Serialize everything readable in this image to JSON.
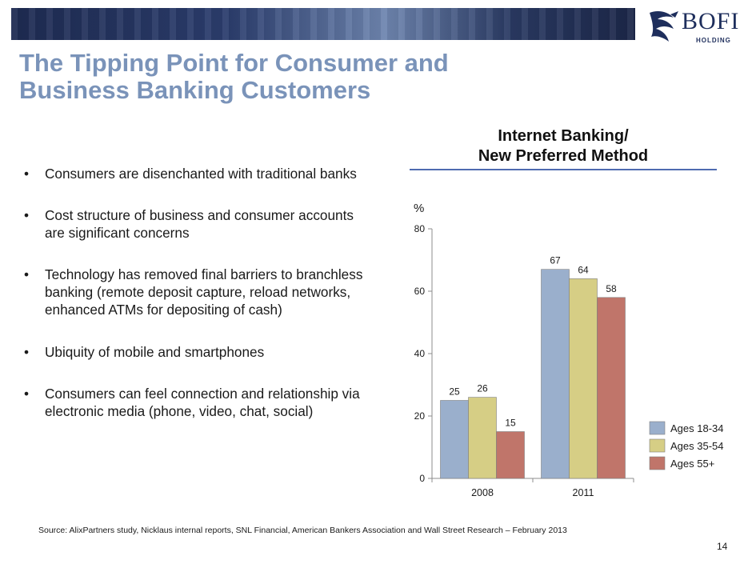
{
  "header": {
    "logo_text": "BOFI",
    "logo_subtext": "HOLDING"
  },
  "title": {
    "line1": "The Tipping Point for Consumer and",
    "line2": "Business Banking Customers"
  },
  "bullets": [
    "Consumers are disenchanted with traditional banks",
    "Cost structure of business and consumer accounts are significant concerns",
    "Technology has removed final barriers to branchless banking (remote deposit capture, reload networks, enhanced ATMs for depositing of cash)",
    "Ubiquity of mobile and smartphones",
    "Consumers can feel connection and relationship via electronic media (phone, video, chat, social)"
  ],
  "chart_heading": {
    "line1": "Internet Banking/",
    "line2": "New Preferred Method"
  },
  "chart_data": {
    "type": "bar",
    "title": "",
    "ylabel": "%",
    "xlabel": "",
    "categories": [
      "2008",
      "2011"
    ],
    "series": [
      {
        "name": "Ages 18-34",
        "values": [
          25,
          67
        ],
        "color": "#9aafcc"
      },
      {
        "name": "Ages 35-54",
        "values": [
          26,
          64
        ],
        "color": "#d6ce85"
      },
      {
        "name": "Ages 55+",
        "values": [
          15,
          58
        ],
        "color": "#c0756a"
      }
    ],
    "ylim": [
      0,
      80
    ],
    "yticks": [
      0,
      20,
      40,
      60,
      80
    ],
    "grid": false,
    "legend_position": "right"
  },
  "footer": {
    "source": "Source:  AlixPartners study, Nicklaus internal reports, SNL Financial, American Bankers Association and Wall Street Research –  February 2013",
    "page_number": "14"
  }
}
